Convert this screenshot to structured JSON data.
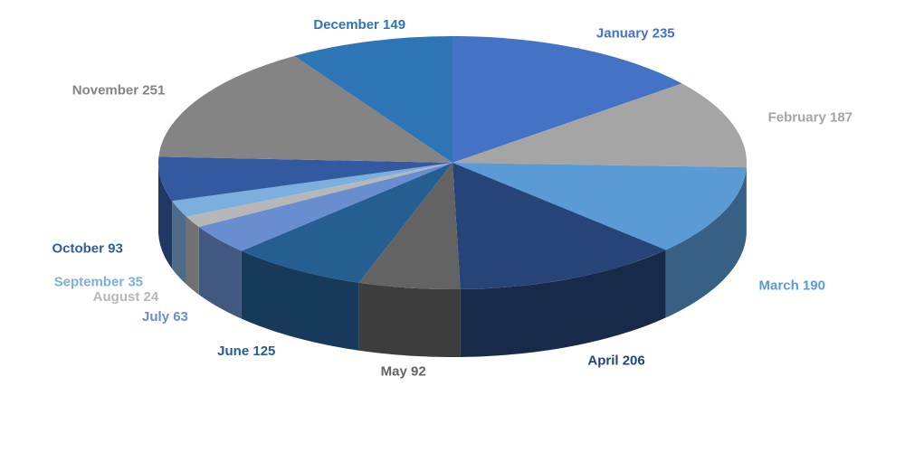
{
  "chart_data": {
    "type": "pie",
    "categories": [
      "January",
      "February",
      "March",
      "April",
      "May",
      "June",
      "July",
      "August",
      "September",
      "October",
      "November",
      "December"
    ],
    "values": [
      235,
      187,
      190,
      206,
      92,
      125,
      63,
      24,
      35,
      93,
      251,
      149
    ],
    "colors": [
      "#4472c4",
      "#a5a5a5",
      "#5b9bd5",
      "#264478",
      "#636363",
      "#255e91",
      "#698ed0",
      "#b7b7b7",
      "#7cafdd",
      "#335aa1",
      "#848484",
      "#2e75b6"
    ]
  }
}
